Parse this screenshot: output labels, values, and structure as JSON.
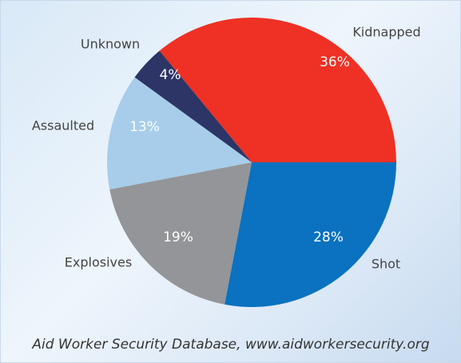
{
  "chart_data": {
    "type": "pie",
    "categories": [
      "Kidnapped",
      "Shot",
      "Explosives",
      "Assaulted",
      "Unknown"
    ],
    "values": [
      36,
      28,
      19,
      13,
      4
    ],
    "value_labels": [
      "36%",
      "28%",
      "19%",
      "13%",
      "4%"
    ],
    "colors": [
      "#ee3124",
      "#0a72c0",
      "#949598",
      "#a7cdea",
      "#2c3566"
    ],
    "source": "Aid Worker Security Database, www.aidworkersecurity.org"
  }
}
